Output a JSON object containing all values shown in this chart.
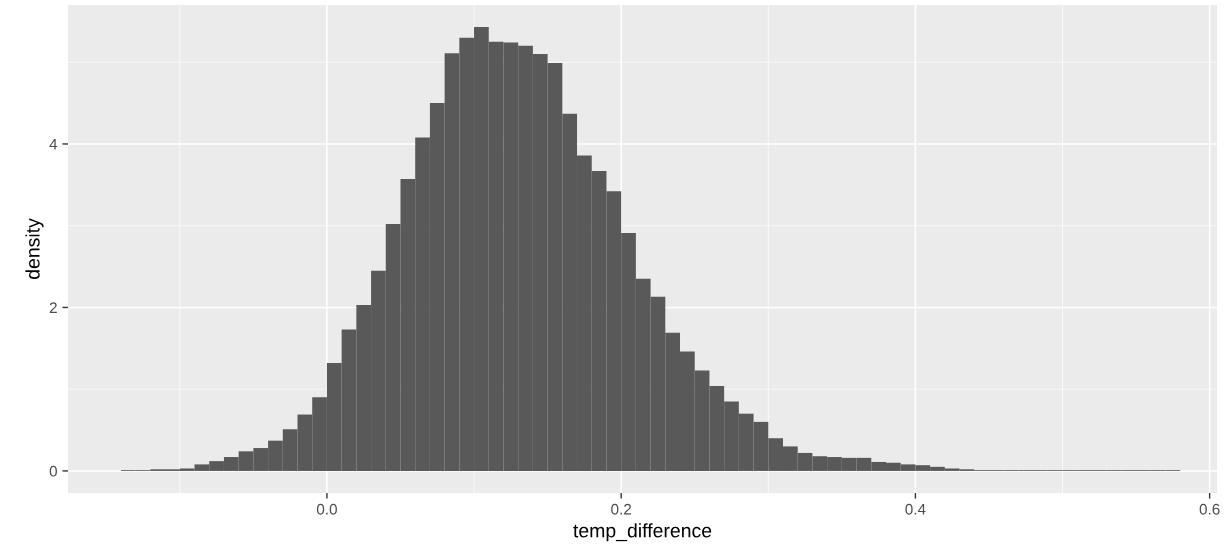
{
  "chart_data": {
    "type": "histogram",
    "xlabel": "temp_difference",
    "ylabel": "density",
    "color": "#595959",
    "bins": [
      -0.14,
      -0.13,
      -0.12,
      -0.11,
      -0.1,
      -0.09,
      -0.08,
      -0.07,
      -0.06,
      -0.05,
      -0.04,
      -0.03,
      -0.02,
      -0.01,
      0.0,
      0.01,
      0.02,
      0.03,
      0.04,
      0.05,
      0.06,
      0.07,
      0.08,
      0.09,
      0.1,
      0.11,
      0.12,
      0.13,
      0.14,
      0.15,
      0.16,
      0.17,
      0.18,
      0.19,
      0.2,
      0.21,
      0.22,
      0.23,
      0.24,
      0.25,
      0.26,
      0.27,
      0.28,
      0.29,
      0.3,
      0.31,
      0.32,
      0.33,
      0.34,
      0.35,
      0.36,
      0.37,
      0.38,
      0.39,
      0.4,
      0.41,
      0.42,
      0.43,
      0.44,
      0.45,
      0.46,
      0.47,
      0.48,
      0.49,
      0.5,
      0.51,
      0.52,
      0.53,
      0.54,
      0.55,
      0.56,
      0.57,
      0.58
    ],
    "values": [
      0.01,
      0.01,
      0.02,
      0.02,
      0.03,
      0.08,
      0.12,
      0.17,
      0.24,
      0.28,
      0.37,
      0.51,
      0.69,
      0.9,
      1.32,
      1.73,
      2.03,
      2.45,
      3.02,
      3.57,
      4.08,
      4.5,
      5.11,
      5.3,
      5.43,
      5.25,
      5.24,
      5.2,
      5.1,
      4.99,
      4.37,
      3.86,
      3.67,
      3.42,
      2.91,
      2.35,
      2.13,
      1.69,
      1.46,
      1.23,
      1.04,
      0.85,
      0.7,
      0.6,
      0.4,
      0.3,
      0.22,
      0.18,
      0.17,
      0.16,
      0.16,
      0.11,
      0.1,
      0.08,
      0.07,
      0.05,
      0.03,
      0.02,
      0.01,
      0.01,
      0.01,
      0.01,
      0.01,
      0.01,
      0.01,
      0.01,
      0.01,
      0.01,
      0.01,
      0.01,
      0.01,
      0.01
    ],
    "xlim": [
      -0.176,
      0.605
    ],
    "ylim": [
      -0.27,
      5.7
    ],
    "xticks": [
      {
        "value": 0.0,
        "label": "0.0"
      },
      {
        "value": 0.2,
        "label": "0.2"
      },
      {
        "value": 0.4,
        "label": "0.4"
      },
      {
        "value": 0.6,
        "label": "0.6"
      }
    ],
    "yticks": [
      0,
      2,
      4
    ],
    "grid": true
  }
}
